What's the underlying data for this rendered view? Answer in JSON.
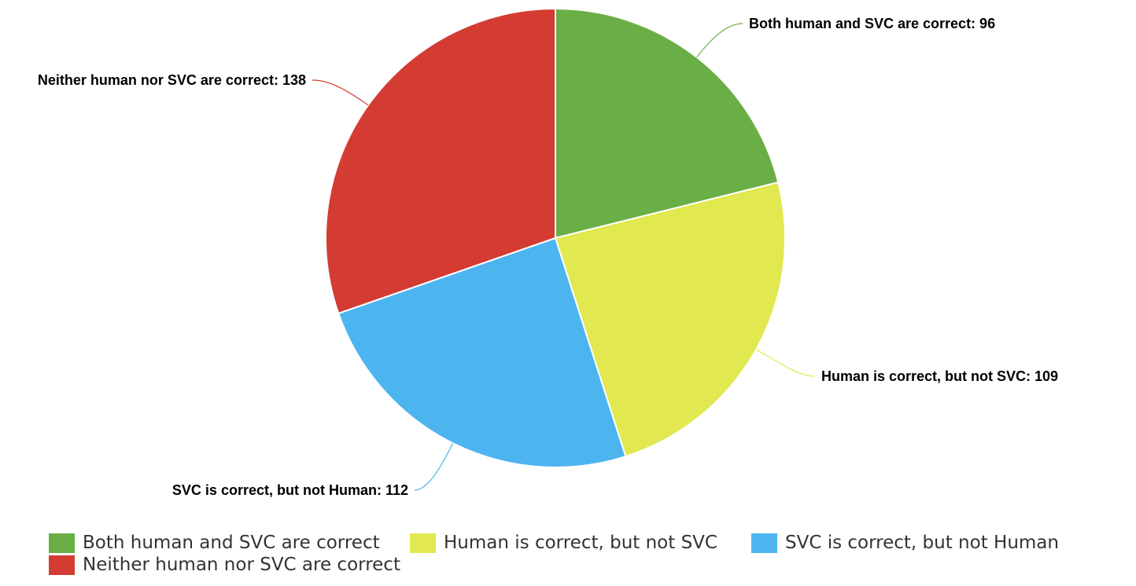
{
  "chart_data": {
    "type": "pie",
    "title": "",
    "slices": [
      {
        "label": "Both human and SVC are correct",
        "value": 96,
        "color": "#6AAF46"
      },
      {
        "label": "Human is correct, but not SVC",
        "value": 109,
        "color": "#E2E84F"
      },
      {
        "label": "SVC is correct, but not Human",
        "value": 112,
        "color": "#4CB5F0"
      },
      {
        "label": "Neither human nor SVC are correct",
        "value": 138,
        "color": "#D43B33"
      }
    ],
    "legend_position": "bottom"
  }
}
